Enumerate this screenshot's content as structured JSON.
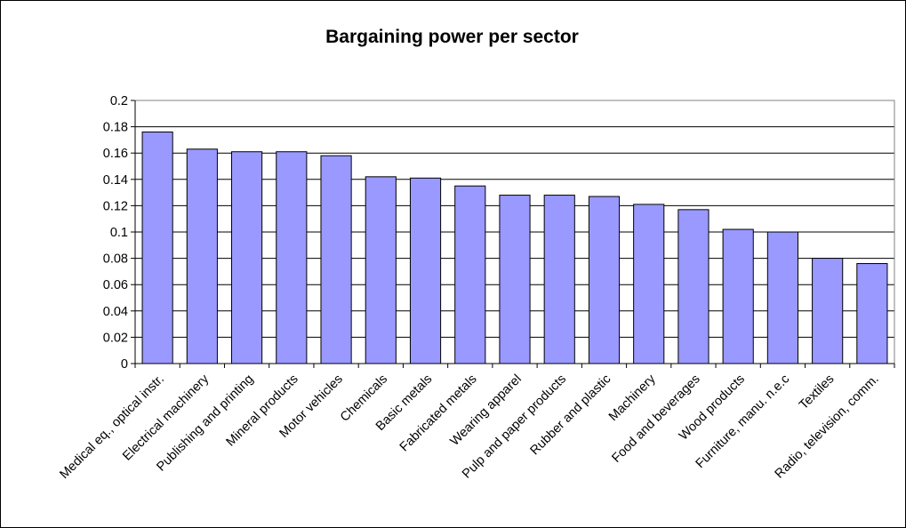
{
  "chart_data": {
    "type": "bar",
    "title": "Bargaining power per sector",
    "xlabel": "",
    "ylabel": "",
    "ylim": [
      0,
      0.2
    ],
    "yticks": [
      "0",
      "0.02",
      "0.04",
      "0.06",
      "0.08",
      "0.1",
      "0.12",
      "0.14",
      "0.16",
      "0.18",
      "0.2"
    ],
    "grid": true,
    "legend": "none",
    "bar_color": "#9999ff",
    "categories": [
      "Medical eq., optical instr.",
      "Electrical machinery",
      "Publishing and printing",
      "Mineral products",
      "Motor vehicles",
      "Chemicals",
      "Basic metals",
      "Fabricated metals",
      "Wearing apparel",
      "Pulp and paper products",
      "Rubber and plastic",
      "Machinery",
      "Food and beverages",
      "Wood products",
      "Furniture, manu. n.e.c",
      "Textiles",
      "Radio, television, comm."
    ],
    "values": [
      0.176,
      0.163,
      0.161,
      0.161,
      0.158,
      0.142,
      0.141,
      0.135,
      0.128,
      0.128,
      0.127,
      0.121,
      0.117,
      0.102,
      0.1,
      0.08,
      0.076
    ]
  }
}
